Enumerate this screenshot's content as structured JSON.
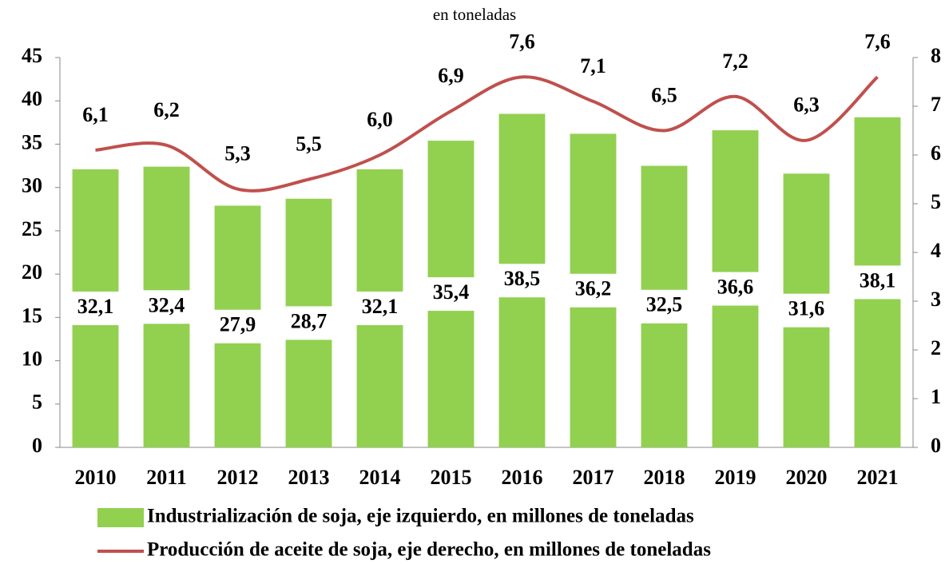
{
  "chart_data": {
    "type": "bar_line",
    "subtitle": "en toneladas",
    "categories": [
      "2010",
      "2011",
      "2012",
      "2013",
      "2014",
      "2015",
      "2016",
      "2017",
      "2018",
      "2019",
      "2020",
      "2021"
    ],
    "series": [
      {
        "name": "Industrialización de soja, eje izquierdo, en millones de toneladas",
        "type": "bar",
        "color": "#92d050",
        "values": [
          32.1,
          32.4,
          27.9,
          28.7,
          32.1,
          35.4,
          38.5,
          36.2,
          32.5,
          36.6,
          31.6,
          38.1
        ],
        "value_labels": [
          "32,1",
          "32,4",
          "27,9",
          "28,7",
          "32,1",
          "35,4",
          "38,5",
          "36,2",
          "32,5",
          "36,6",
          "31,6",
          "38,1"
        ]
      },
      {
        "name": "Producción de aceite de soja, eje derecho, en millones de toneladas",
        "type": "line",
        "axis": "y2",
        "color": "#c0504d",
        "values": [
          6.1,
          6.2,
          5.3,
          5.5,
          6.0,
          6.9,
          7.6,
          7.1,
          6.5,
          7.2,
          6.3,
          7.6
        ],
        "value_labels": [
          "6,1",
          "6,2",
          "5,3",
          "5,5",
          "6,0",
          "6,9",
          "7,6",
          "7,1",
          "6,5",
          "7,2",
          "6,3",
          "7,6"
        ]
      }
    ],
    "ylim": [
      0,
      45
    ],
    "yticks": [
      0,
      5,
      10,
      15,
      20,
      25,
      30,
      35,
      40,
      45
    ],
    "y2lim": [
      0,
      8
    ],
    "y2ticks": [
      0,
      1,
      2,
      3,
      4,
      5,
      6,
      7,
      8
    ]
  }
}
